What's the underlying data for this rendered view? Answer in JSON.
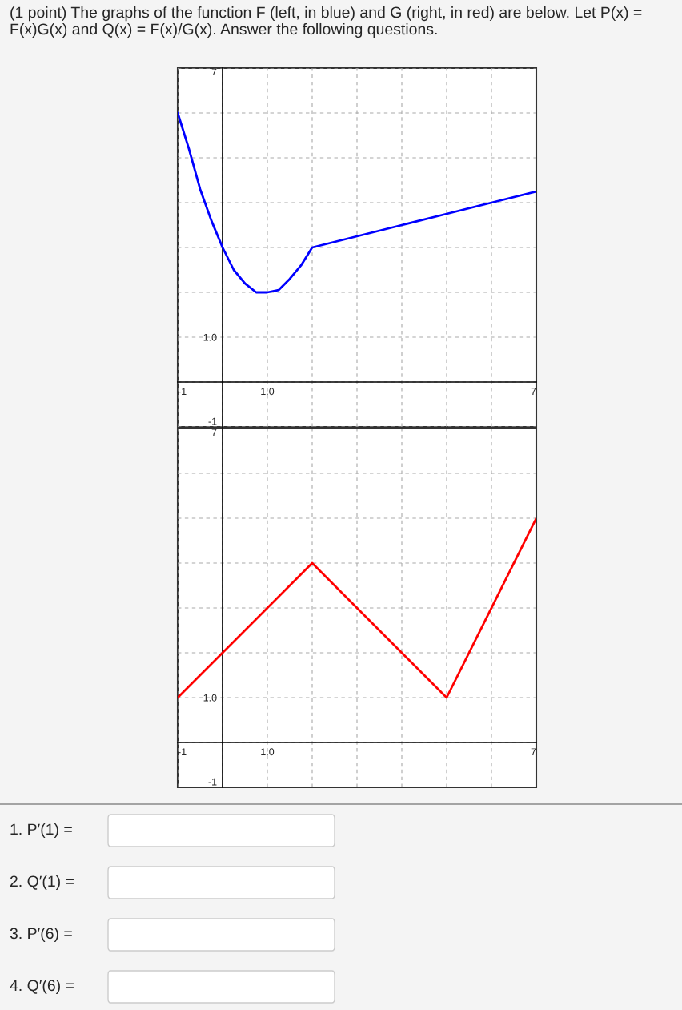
{
  "chart_data": [
    {
      "type": "line",
      "title": "(1 point) The graphs of the function F (left, in blue) and G (right, in red) are below. Let P(x) = F(x)G(x) and Q(x) = F(x)/G(x). Answer the following questions.",
      "x": [
        -1,
        -0.75,
        -0.5,
        -0.25,
        0,
        0.25,
        0.5,
        0.75,
        1,
        1.25,
        1.5,
        1.75,
        2,
        3,
        4,
        5,
        6,
        7
      ],
      "series": [
        {
          "color": "#0000ff",
          "values": [
            6,
            5.2,
            4.3,
            3.6,
            3,
            2.5,
            2.2,
            2.0,
            2,
            2.05,
            2.3,
            2.6,
            3,
            3.25,
            3.5,
            3.75,
            4,
            4.25
          ]
        }
      ],
      "xlim": [
        -1,
        7
      ],
      "ylim": [
        -1,
        7
      ],
      "xticks": [
        -1,
        {
          "value": 0,
          "label": null
        },
        {
          "value": 1,
          "label": "1.0"
        },
        {
          "value": 2,
          "label": null
        },
        {
          "value": 3,
          "label": null
        },
        {
          "value": 4,
          "label": null
        },
        {
          "value": 5,
          "label": null
        },
        {
          "value": 6,
          "label": null
        },
        7
      ],
      "yticks": [
        -1,
        {
          "value": 0,
          "label": null
        },
        {
          "value": 1,
          "label": "1.0"
        },
        {
          "value": 2,
          "label": null
        },
        {
          "value": 3,
          "label": null
        },
        {
          "value": 4,
          "label": null
        },
        {
          "value": 5,
          "label": null
        },
        {
          "value": 6,
          "label": null
        },
        7
      ],
      "grid": true
    },
    {
      "type": "line",
      "x": [
        -1,
        0,
        2,
        5,
        7
      ],
      "series": [
        {
          "color": "#ff0000",
          "values": [
            1,
            2,
            4,
            1,
            5
          ]
        }
      ],
      "xlim": [
        -1,
        7
      ],
      "ylim": [
        -1,
        7
      ],
      "xticks": [
        -1,
        {
          "value": 0,
          "label": null
        },
        {
          "value": 1,
          "label": "1.0"
        },
        {
          "value": 2,
          "label": null
        },
        {
          "value": 3,
          "label": null
        },
        {
          "value": 4,
          "label": null
        },
        {
          "value": 5,
          "label": null
        },
        {
          "value": 6,
          "label": null
        },
        7
      ],
      "yticks": [
        -1,
        {
          "value": 0,
          "label": null
        },
        {
          "value": 1,
          "label": "1.0"
        },
        {
          "value": 2,
          "label": null
        },
        {
          "value": 3,
          "label": null
        },
        {
          "value": 4,
          "label": null
        },
        {
          "value": 5,
          "label": null
        },
        {
          "value": 6,
          "label": null
        },
        7
      ],
      "grid": true,
      "annotations": [
        "1. P′(1) =",
        "2. Q′(1) =",
        "3. P′(6) =",
        "4. Q′(6) ="
      ]
    }
  ]
}
